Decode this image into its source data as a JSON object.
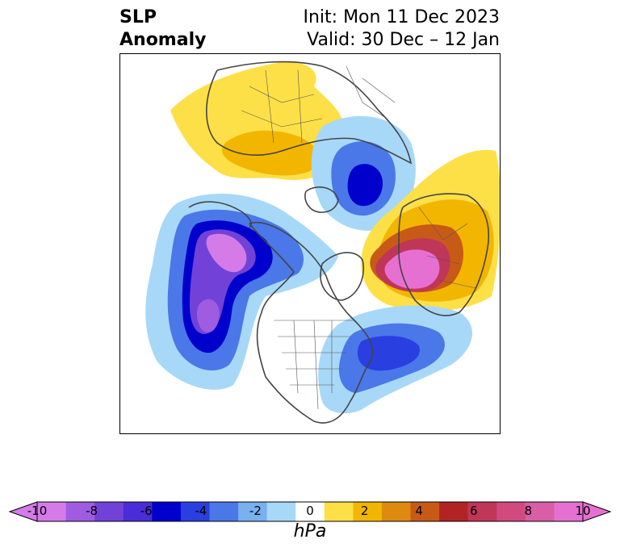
{
  "title": {
    "left_line1": "SLP",
    "left_line2": "Anomaly",
    "right_line1": "Init: Mon 11 Dec 2023",
    "right_line2": "Valid: 30 Dec – 12 Jan"
  },
  "colorbar": {
    "unit": "hPa",
    "ticks": [
      "-10",
      "-8",
      "-6",
      "-4",
      "-2",
      "0",
      "2",
      "4",
      "6",
      "8",
      "10"
    ],
    "levels": [
      -10,
      -9,
      -8,
      -7,
      -6,
      -5,
      -4,
      -3,
      -2,
      -1,
      1,
      2,
      3,
      4,
      5,
      6,
      7,
      8,
      9,
      10
    ],
    "colors": [
      "#d47be8",
      "#a05ce0",
      "#7242d8",
      "#4a2dd8",
      "#0000cc",
      "#2a3fe0",
      "#4a78e8",
      "#78b0f0",
      "#a8d8f8",
      "#ffffff",
      "#fde047",
      "#f2b600",
      "#de8a10",
      "#c85a18",
      "#b22424",
      "#c03658",
      "#d04a80",
      "#d85ea6",
      "#e670d2"
    ]
  },
  "map": {
    "projection": "north-polar-stereographic",
    "anomaly_centers": [
      {
        "name": "NE Pacific / Gulf of Alaska low",
        "sign": "negative",
        "peak_hPa": -10
      },
      {
        "name": "Central Arctic low",
        "sign": "negative",
        "peak_hPa": -6
      },
      {
        "name": "North Atlantic low",
        "sign": "negative",
        "peak_hPa": -5
      },
      {
        "name": "Scandinavia / Norwegian Sea high",
        "sign": "positive",
        "peak_hPa": 10
      },
      {
        "name": "Siberian high",
        "sign": "positive",
        "peak_hPa": 2
      }
    ]
  }
}
